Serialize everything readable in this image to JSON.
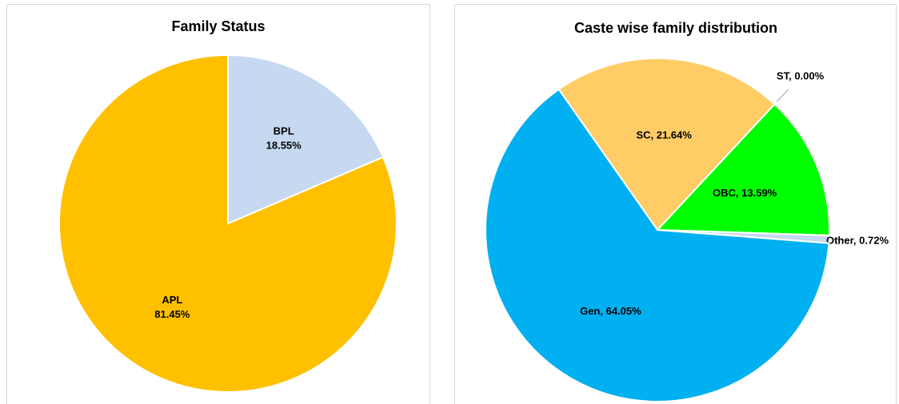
{
  "chart_data": [
    {
      "type": "pie",
      "title": "Family Status",
      "categories": [
        "BPL",
        "APL"
      ],
      "values": [
        18.55,
        81.45
      ],
      "value_labels": [
        "18.55%",
        "81.45%"
      ],
      "colors": [
        "#c6d9f1",
        "#ffc000"
      ]
    },
    {
      "type": "pie",
      "title": "Caste wise family distribution",
      "values": [
        21.64,
        0.0,
        13.59,
        0.72,
        64.05
      ],
      "value_labels": [
        "SC, 21.64%",
        "ST, 0.00%",
        "OBC, 13.59%",
        "Other, 0.72%",
        "Gen, 64.05%"
      ],
      "colors": [
        "#ffcc66",
        "#7030a0",
        "#00ff00",
        "#c6d9f1",
        "#00b0f0"
      ]
    }
  ]
}
